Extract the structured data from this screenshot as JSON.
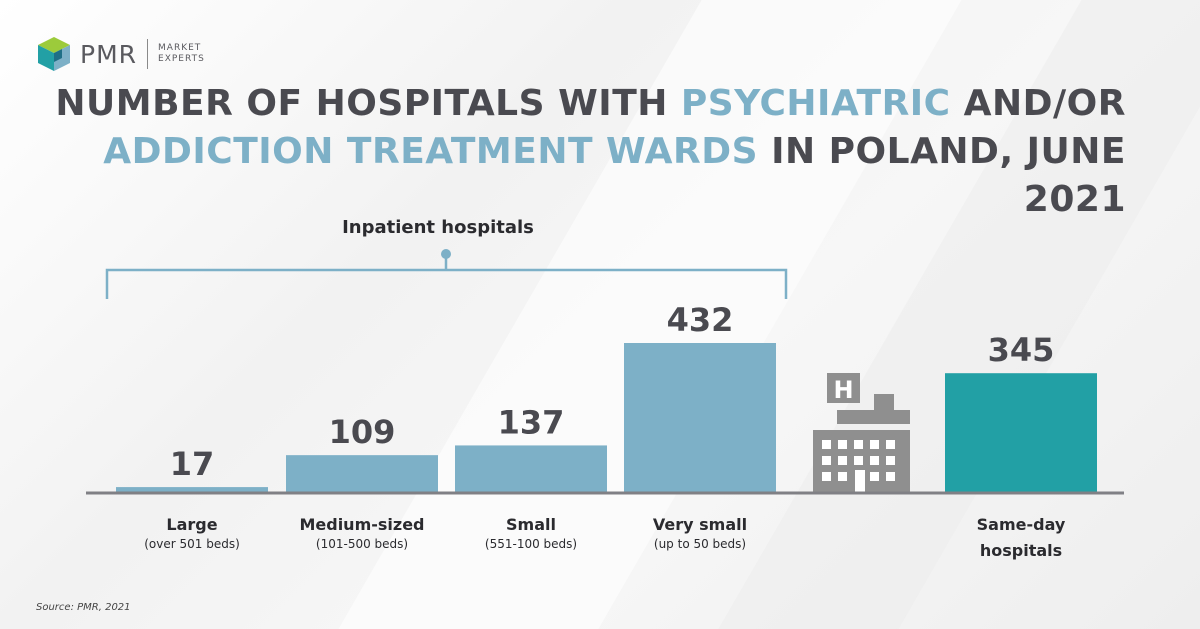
{
  "brand": {
    "name": "PMR",
    "sub_line1": "MARKET",
    "sub_line2": "EXPERTS"
  },
  "title": {
    "part1": "NUMBER OF HOSPITALS WITH ",
    "accent1": "PSYCHIATRIC",
    "part2": " AND/OR",
    "accent2": "ADDICTION TREATMENT WARDS",
    "part3": " IN POLAND, JUNE 2021"
  },
  "source": "Source: PMR, 2021",
  "colors": {
    "inpatient_bar": "#7db0c7",
    "same_day_bar": "#22a0a5",
    "accent_text": "#7db0c7",
    "baseline": "#808085",
    "icon": "#8f8f8f"
  },
  "chart_data": {
    "type": "bar",
    "title": "NUMBER OF HOSPITALS WITH PSYCHIATRIC AND/OR ADDICTION TREATMENT WARDS IN POLAND, JUNE 2021",
    "bracket_label": "Inpatient hospitals",
    "categories": [
      {
        "label": "Large",
        "sub": "(over 501 beds)",
        "value": 17,
        "group": "inpatient"
      },
      {
        "label": "Medium-sized",
        "sub": "(101-500 beds)",
        "value": 109,
        "group": "inpatient"
      },
      {
        "label": "Small",
        "sub": "(551-100 beds)",
        "value": 137,
        "group": "inpatient"
      },
      {
        "label": "Very small",
        "sub": "(up to 50 beds)",
        "value": 432,
        "group": "inpatient"
      },
      {
        "label": "Same-day",
        "sub_bold": "hospitals",
        "value": 345,
        "group": "same-day"
      }
    ],
    "ylim": [
      0,
      432
    ],
    "grid": false,
    "icon": "hospital-building-icon"
  }
}
